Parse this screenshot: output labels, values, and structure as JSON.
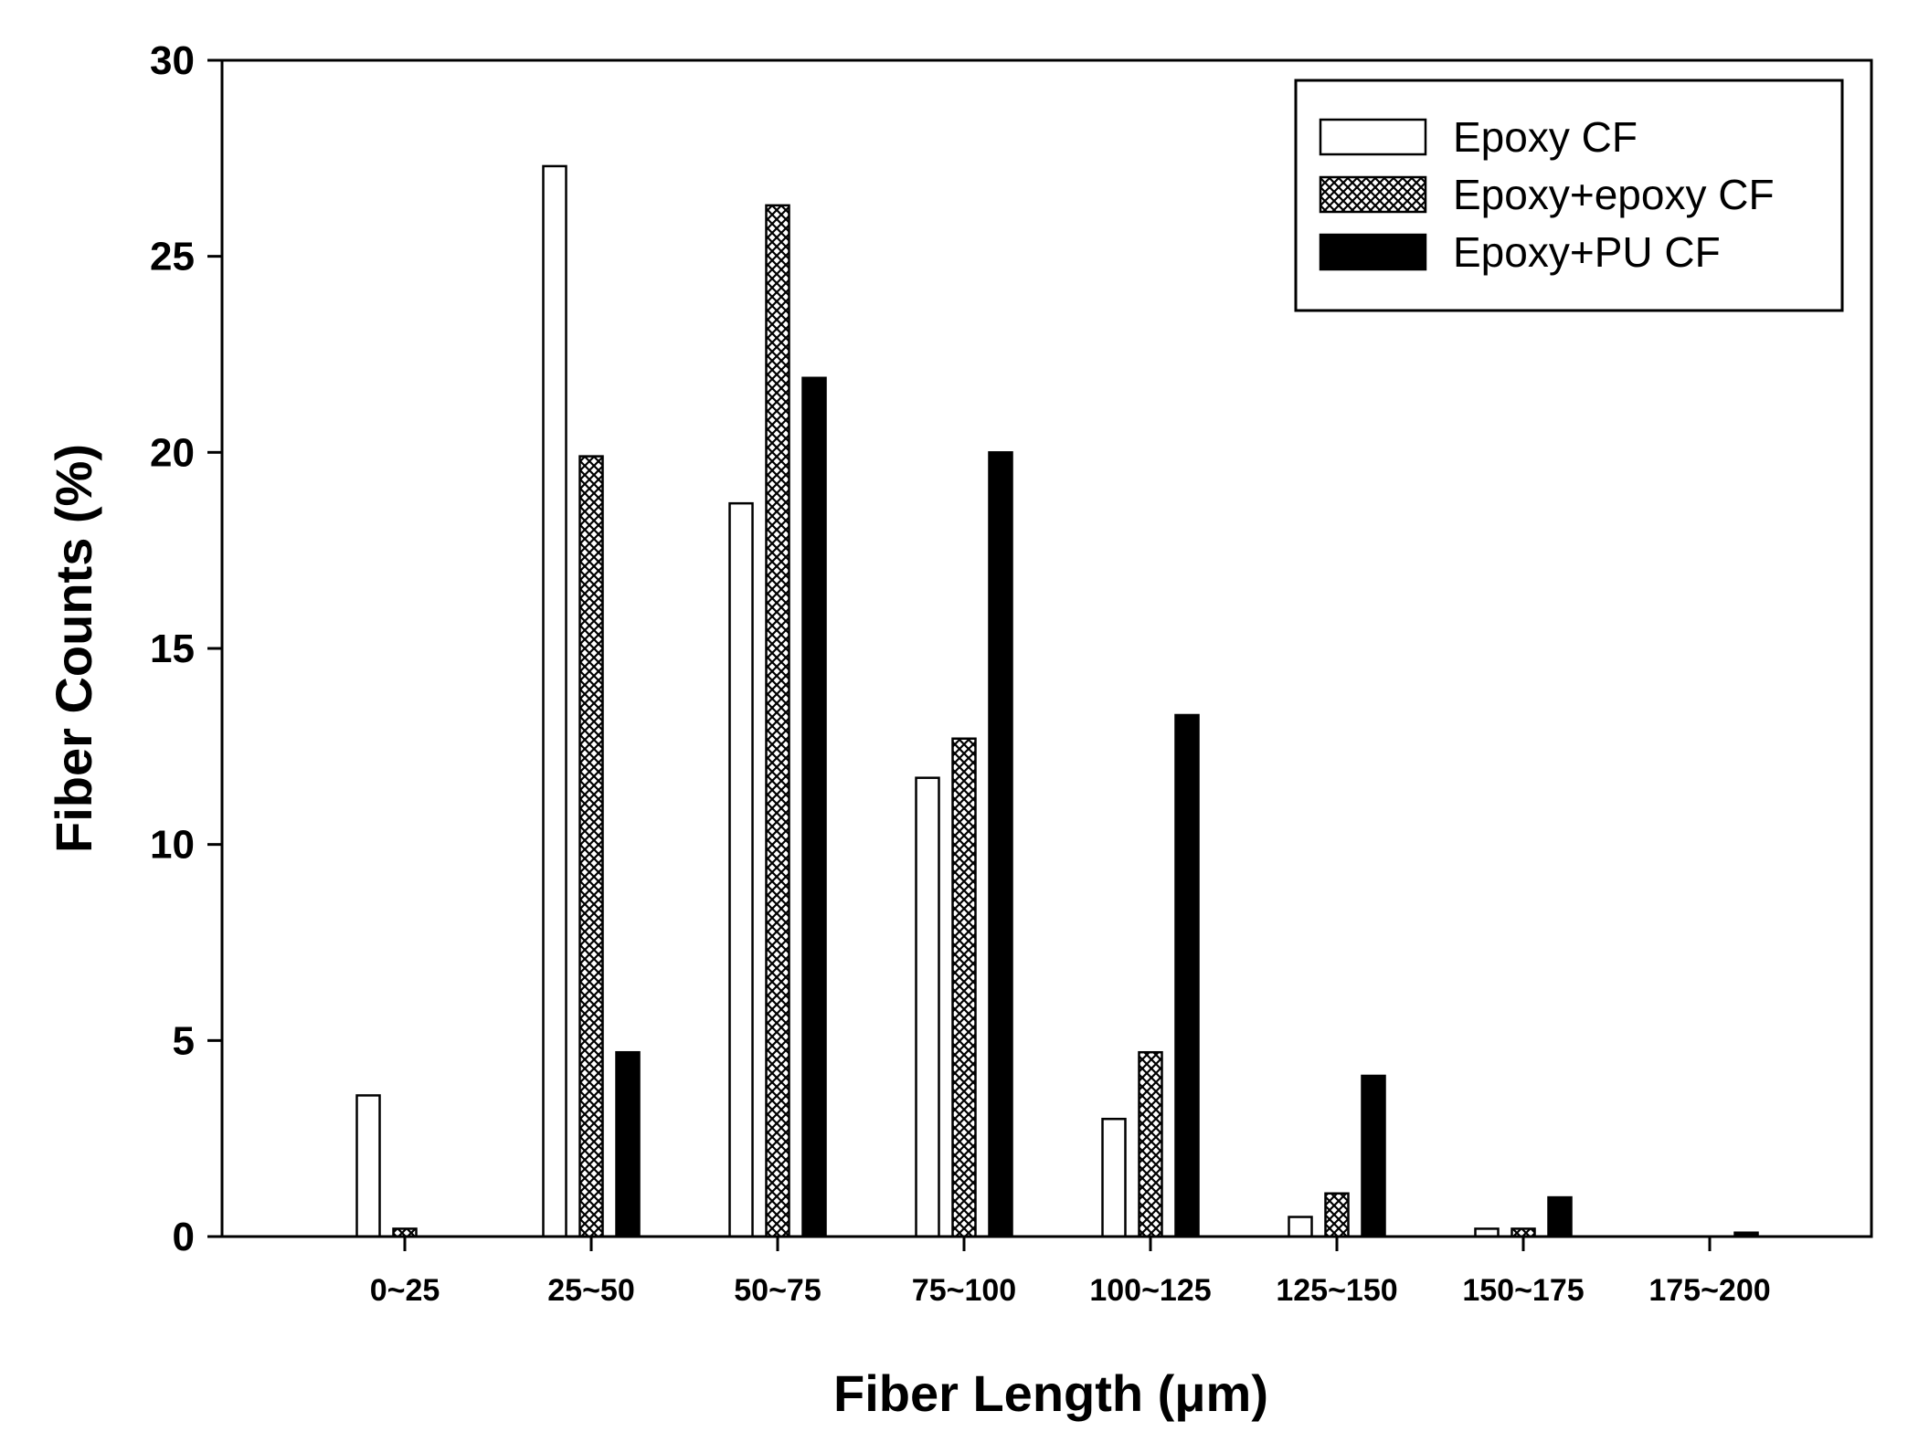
{
  "chart_data": {
    "type": "bar",
    "xlabel": "Fiber Length (μm)",
    "ylabel": "Fiber Counts (%)",
    "ylim": [
      0,
      30
    ],
    "yticks": [
      0,
      5,
      10,
      15,
      20,
      25,
      30
    ],
    "categories": [
      "0~25",
      "25~50",
      "50~75",
      "75~100",
      "100~125",
      "125~150",
      "150~175",
      "175~200"
    ],
    "series": [
      {
        "name": "Epoxy CF",
        "fill": "white",
        "values": [
          3.6,
          27.3,
          18.7,
          11.7,
          3.0,
          0.5,
          0.2,
          0.0
        ]
      },
      {
        "name": "Epoxy+epoxy CF",
        "fill": "crosshatch",
        "values": [
          0.2,
          19.9,
          26.3,
          12.7,
          4.7,
          1.1,
          0.2,
          0.0
        ]
      },
      {
        "name": "Epoxy+PU CF",
        "fill": "black",
        "values": [
          0.0,
          4.7,
          21.9,
          20.0,
          13.3,
          4.1,
          1.0,
          0.1
        ]
      }
    ],
    "grid": false,
    "legend_position": "top-right"
  }
}
